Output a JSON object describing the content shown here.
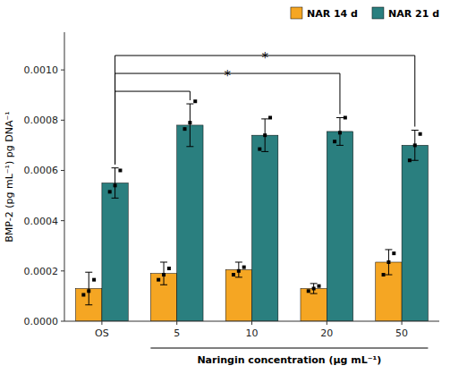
{
  "chart_data": {
    "type": "bar",
    "categories": [
      "OS",
      "5",
      "10",
      "20",
      "50"
    ],
    "series": [
      {
        "name": "NAR 14 d",
        "color": "#F5A623",
        "values": [
          0.00013,
          0.00019,
          0.000205,
          0.00013,
          0.000235
        ],
        "errors": [
          6.5e-05,
          4.5e-05,
          3e-05,
          2e-05,
          5e-05
        ],
        "points": [
          [
            0.000105,
            0.00012,
            0.000165
          ],
          [
            0.000165,
            0.000185,
            0.00021
          ],
          [
            0.000185,
            0.0002,
            0.000215
          ],
          [
            0.00012,
            0.00013,
            0.00014
          ],
          [
            0.000185,
            0.000235,
            0.00027
          ]
        ]
      },
      {
        "name": "NAR 21 d",
        "color": "#2A7F7F",
        "values": [
          0.00055,
          0.00078,
          0.00074,
          0.000755,
          0.0007
        ],
        "errors": [
          6e-05,
          8.5e-05,
          6.5e-05,
          5.5e-05,
          6e-05
        ],
        "points": [
          [
            0.000515,
            0.00054,
            0.0006
          ],
          [
            0.000765,
            0.00079,
            0.000875
          ],
          [
            0.000685,
            0.00074,
            0.00081
          ],
          [
            0.000715,
            0.00075,
            0.00081
          ],
          [
            0.00064,
            0.0007,
            0.000745
          ]
        ]
      }
    ],
    "ylim": [
      0,
      0.00115
    ],
    "yticks": [
      {
        "value": 0,
        "label": "0.0000"
      },
      0.0002,
      0.0004,
      0.0006,
      0.0008,
      {
        "value": 0.001,
        "label": "0.0010"
      }
    ],
    "ylabel": "BMP-2 (pg mL⁻¹) pg DNA⁻¹",
    "xlabel": "Naringin concentration (μg mL⁻¹)",
    "annotations": [
      {
        "text": "*",
        "categories": [
          "OS",
          "50"
        ]
      },
      {
        "text": "*",
        "categories": [
          "OS",
          "20"
        ]
      },
      {
        "categories": [
          "OS",
          "5"
        ]
      }
    ],
    "legend": "upper right",
    "grid": false
  }
}
